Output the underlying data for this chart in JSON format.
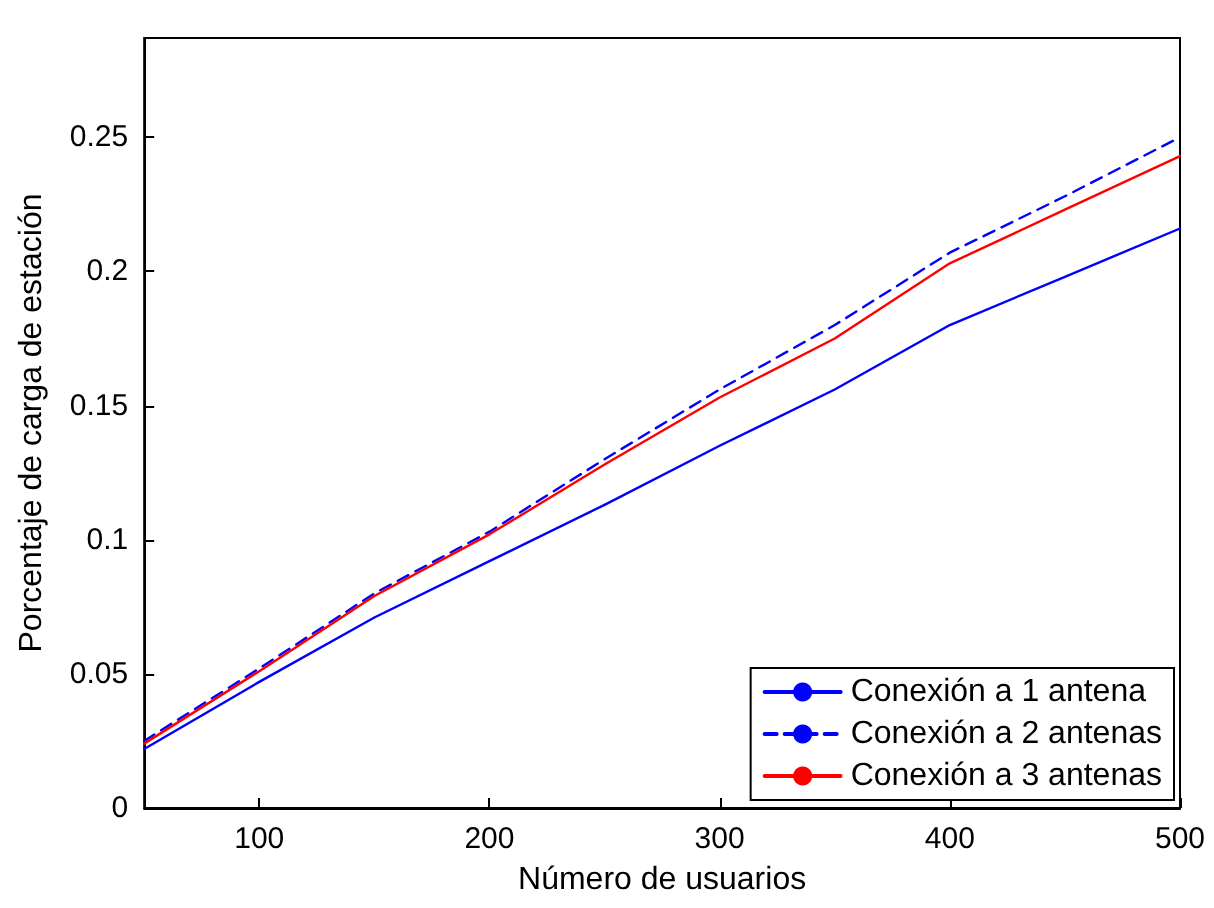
{
  "chart_data": {
    "type": "line",
    "xlabel": "Número de usuarios",
    "ylabel": "Porcentaje de carga de estación",
    "x": [
      50,
      100,
      150,
      200,
      250,
      300,
      350,
      400,
      450,
      500
    ],
    "series": [
      {
        "name": "Conexión a 1 antena",
        "color": "#0000ff",
        "line_style": "solid",
        "values": [
          0.022,
          0.047,
          0.071,
          0.092,
          0.113,
          0.135,
          0.156,
          0.18,
          0.198,
          0.216
        ]
      },
      {
        "name": "Conexión a 2 antenas",
        "color": "#0000ff",
        "line_style": "dashed",
        "values": [
          0.025,
          0.052,
          0.08,
          0.103,
          0.13,
          0.156,
          0.18,
          0.207,
          0.228,
          0.25
        ]
      },
      {
        "name": "Conexión a 3 antenas",
        "color": "#ff0000",
        "line_style": "solid",
        "values": [
          0.024,
          0.051,
          0.079,
          0.102,
          0.128,
          0.153,
          0.175,
          0.203,
          0.223,
          0.243
        ]
      }
    ],
    "xlim": [
      50,
      500
    ],
    "xticks": [
      100,
      200,
      300,
      400,
      500
    ],
    "ylim": [
      0,
      0.287
    ],
    "yticks": [
      0,
      0.05,
      0.1,
      0.15,
      0.2,
      0.25
    ],
    "grid": false,
    "legend": "bottom right",
    "marker": "none"
  }
}
